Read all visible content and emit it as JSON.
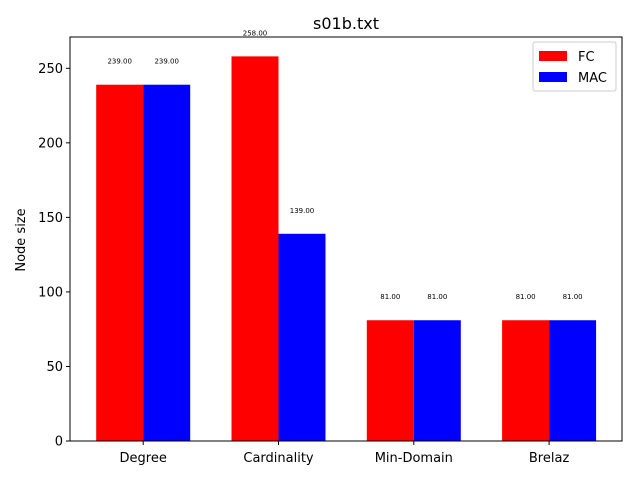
{
  "chart_data": {
    "type": "bar",
    "title": "s01b.txt",
    "xlabel": "",
    "ylabel": "Node size",
    "categories": [
      "Degree",
      "Cardinality",
      "Min-Domain",
      "Brelaz"
    ],
    "series": [
      {
        "name": "FC",
        "color": "#ff0000",
        "values": [
          239.0,
          258.0,
          81.0,
          81.0
        ],
        "labels": [
          "239.00",
          "258.00",
          "81.00",
          "81.00"
        ]
      },
      {
        "name": "MAC",
        "color": "#0000ff",
        "values": [
          239.0,
          139.0,
          81.0,
          81.0
        ],
        "labels": [
          "239.00",
          "139.00",
          "81.00",
          "81.00"
        ]
      }
    ],
    "ylim": [
      0,
      271
    ],
    "yticks": [
      0,
      50,
      100,
      150,
      200,
      250
    ],
    "grid": false,
    "legend": "top-right"
  }
}
